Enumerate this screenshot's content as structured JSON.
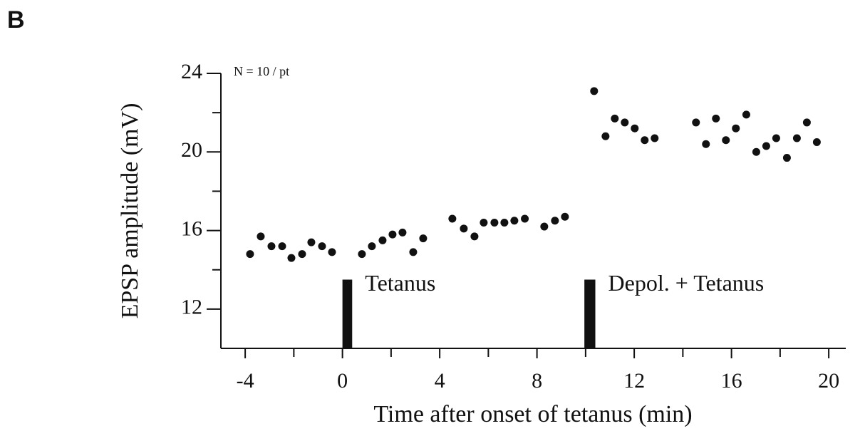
{
  "chart_data": {
    "type": "scatter",
    "panel_label": "B",
    "annotation": "N = 10 / pt",
    "x_label": "Time after onset of tetanus (min)",
    "y_label": "EPSP amplitude (mV)",
    "xlim": [
      -5,
      20.7
    ],
    "ylim": [
      10,
      24
    ],
    "xticks": [
      -4,
      0,
      4,
      8,
      12,
      16,
      20
    ],
    "xminor_ticks": [
      -2,
      2,
      6,
      10,
      14,
      18
    ],
    "yticks": [
      12,
      16,
      20,
      24
    ],
    "yminor_ticks": [
      14,
      18,
      22
    ],
    "color": "#111111",
    "events": [
      {
        "label": "Tetanus",
        "x_start": 0,
        "x_end": 0.4,
        "top": 13.5
      },
      {
        "label": "Depol. + Tetanus",
        "x_start": 9.95,
        "x_end": 10.4,
        "top": 13.5
      }
    ],
    "x": [
      -3.8,
      -3.36,
      -2.92,
      -2.48,
      -2.1,
      -1.66,
      -1.28,
      -0.84,
      -0.43,
      0.8,
      1.21,
      1.65,
      2.06,
      2.47,
      2.91,
      3.32,
      4.52,
      4.99,
      5.43,
      5.81,
      6.25,
      6.66,
      7.07,
      7.5,
      8.3,
      8.74,
      9.15,
      10.35,
      10.82,
      11.2,
      11.61,
      12.02,
      12.43,
      12.84,
      14.54,
      14.95,
      15.36,
      15.77,
      16.18,
      16.61,
      17.02,
      17.43,
      17.84,
      18.28,
      18.69,
      19.1,
      19.51
    ],
    "values": [
      14.8,
      15.7,
      15.2,
      15.2,
      14.6,
      14.8,
      15.4,
      15.2,
      14.9,
      14.8,
      15.2,
      15.5,
      15.8,
      15.9,
      14.9,
      15.6,
      16.6,
      16.1,
      15.7,
      16.4,
      16.4,
      16.4,
      16.5,
      16.6,
      16.2,
      16.5,
      16.7,
      23.1,
      20.8,
      21.7,
      21.5,
      21.2,
      20.6,
      20.7,
      21.5,
      20.4,
      21.7,
      20.6,
      21.2,
      21.9,
      20.0,
      20.3,
      20.7,
      19.7,
      20.7,
      21.5,
      20.5
    ]
  }
}
